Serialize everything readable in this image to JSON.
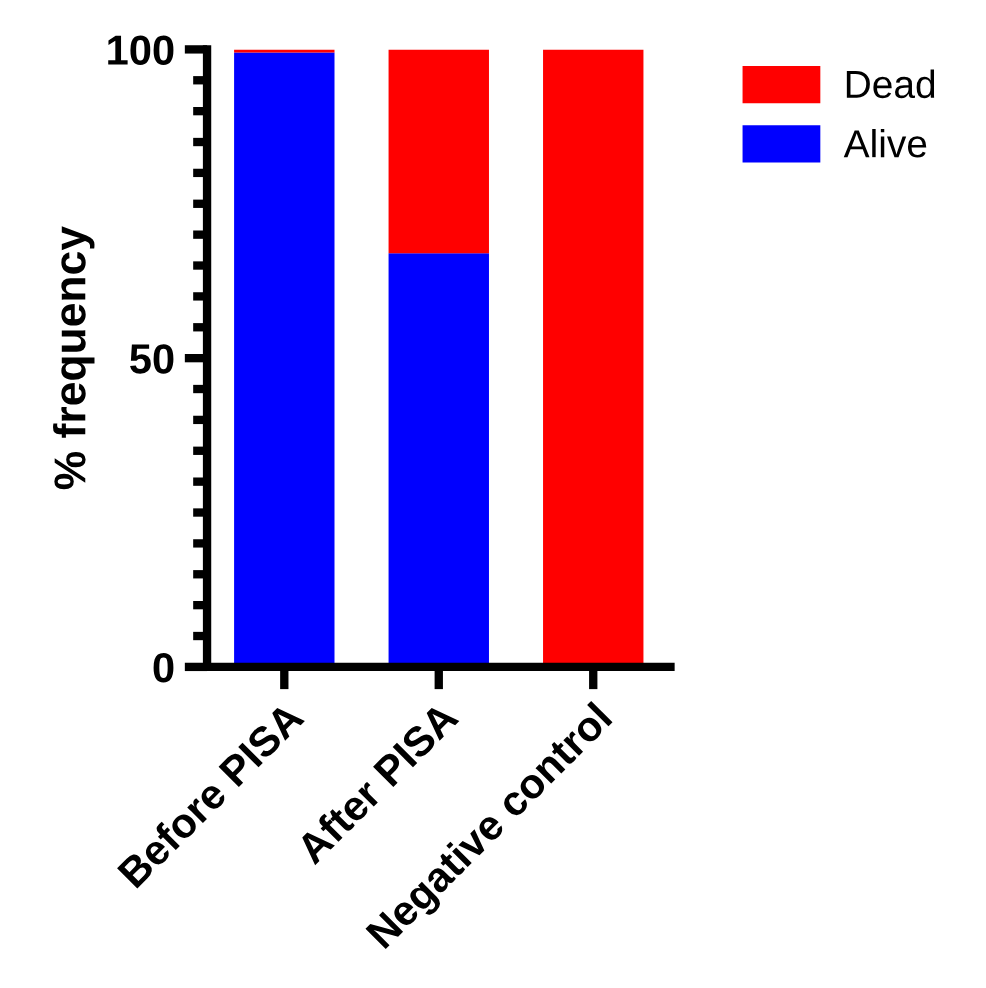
{
  "chart_data": {
    "type": "bar",
    "stacked": true,
    "ylabel": "% frequency",
    "categories": [
      "Before PISA",
      "After PISA",
      "Negative control"
    ],
    "series": [
      {
        "name": "Alive",
        "color": "#0000ff",
        "values": [
          99.5,
          67,
          0
        ]
      },
      {
        "name": "Dead",
        "color": "#ff0000",
        "values": [
          0.5,
          33,
          100
        ]
      }
    ],
    "ylim": [
      0,
      100
    ],
    "yticks": [
      0,
      {
        "value": 5,
        "label": null
      },
      {
        "value": 10,
        "label": null
      },
      {
        "value": 15,
        "label": null
      },
      {
        "value": 20,
        "label": null
      },
      {
        "value": 25,
        "label": null
      },
      {
        "value": 30,
        "label": null
      },
      {
        "value": 35,
        "label": null
      },
      {
        "value": 40,
        "label": null
      },
      {
        "value": 45,
        "label": null
      },
      50,
      {
        "value": 55,
        "label": null
      },
      {
        "value": 60,
        "label": null
      },
      {
        "value": 65,
        "label": null
      },
      {
        "value": 70,
        "label": null
      },
      {
        "value": 75,
        "label": null
      },
      {
        "value": 80,
        "label": null
      },
      {
        "value": 85,
        "label": null
      },
      {
        "value": 90,
        "label": null
      },
      {
        "value": 95,
        "label": null
      },
      100
    ],
    "legend": "top right"
  }
}
